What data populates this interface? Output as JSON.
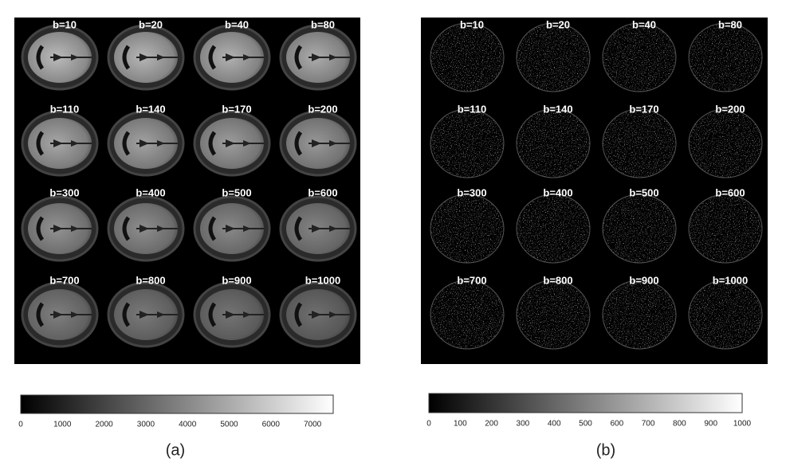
{
  "panels": [
    {
      "caption": "(a)",
      "labels": [
        "b=10",
        "b=20",
        "b=40",
        "b=80",
        "b=110",
        "b=140",
        "b=170",
        "b=200",
        "b=300",
        "b=400",
        "b=500",
        "b=600",
        "b=700",
        "b=800",
        "b=900",
        "b=1000"
      ],
      "colorbar_ticks": [
        0,
        1000,
        2000,
        3000,
        4000,
        5000,
        6000,
        7000
      ]
    },
    {
      "caption": "(b)",
      "labels": [
        "b=10",
        "b=20",
        "b=40",
        "b=80",
        "b=110",
        "b=140",
        "b=170",
        "b=200",
        "b=300",
        "b=400",
        "b=500",
        "b=600",
        "b=700",
        "b=800",
        "b=900",
        "b=1000"
      ],
      "colorbar_ticks": [
        0,
        100,
        200,
        300,
        400,
        500,
        600,
        700,
        800,
        900,
        1000
      ]
    }
  ]
}
